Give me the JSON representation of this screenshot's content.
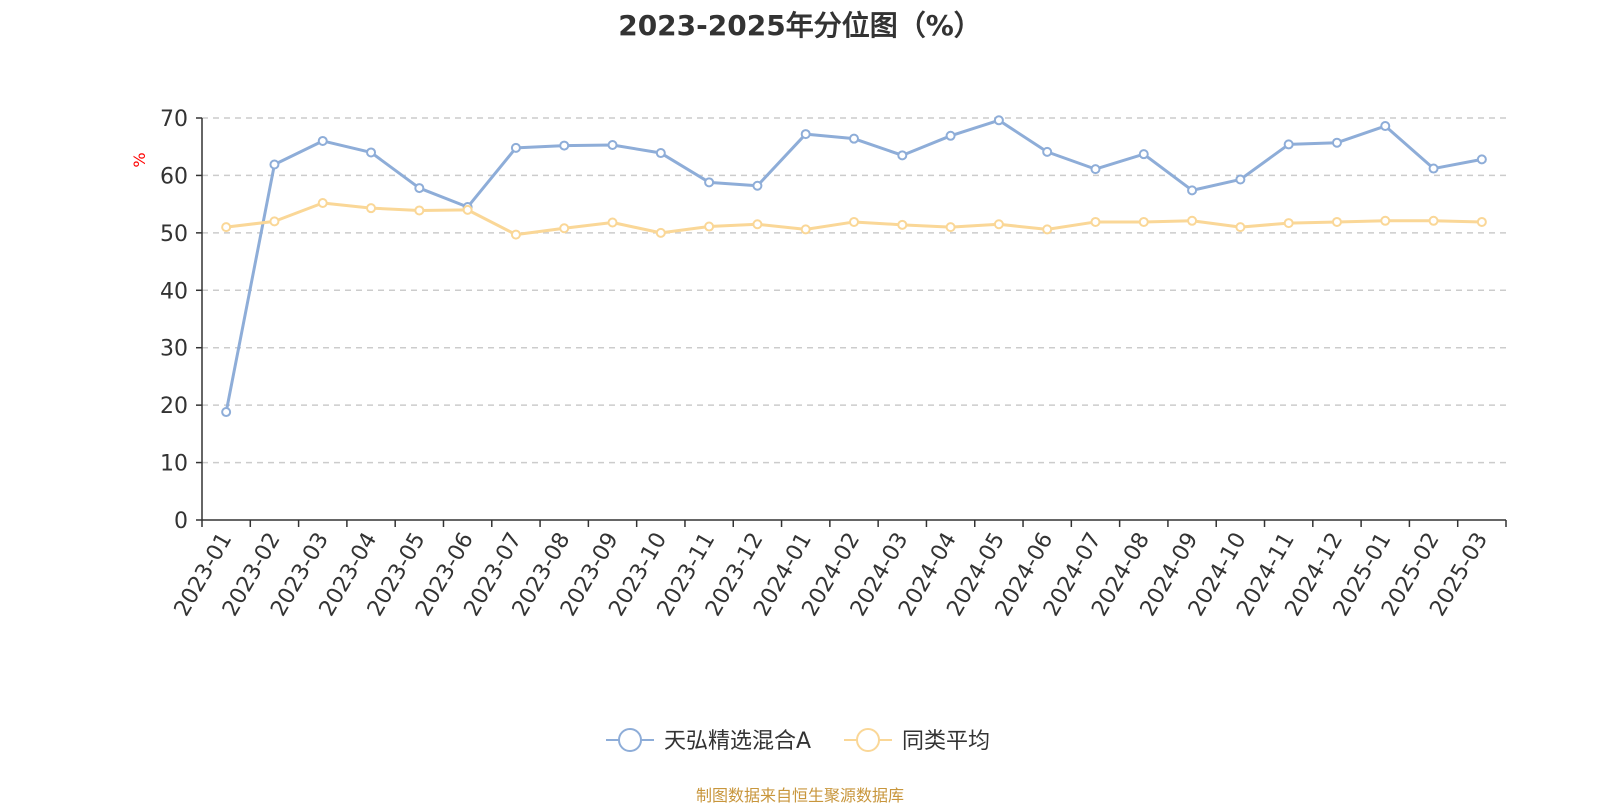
{
  "chart_data": {
    "type": "line",
    "title": "2023-2025年分位图（%）",
    "ylabel": "%",
    "xlabel": "",
    "ylim": [
      0,
      70
    ],
    "yticks": [
      0,
      10,
      20,
      30,
      40,
      50,
      60,
      70
    ],
    "grid": true,
    "legend_position": "bottom-center",
    "categories": [
      "2023-01",
      "2023-02",
      "2023-03",
      "2023-04",
      "2023-05",
      "2023-06",
      "2023-07",
      "2023-08",
      "2023-09",
      "2023-10",
      "2023-11",
      "2023-12",
      "2024-01",
      "2024-02",
      "2024-03",
      "2024-04",
      "2024-05",
      "2024-06",
      "2024-07",
      "2024-08",
      "2024-09",
      "2024-10",
      "2024-11",
      "2024-12",
      "2025-01",
      "2025-02",
      "2025-03"
    ],
    "series": [
      {
        "name": "天弘精选混合A",
        "color": "#8eadd8",
        "values": [
          18.8,
          61.9,
          66.0,
          64.0,
          57.8,
          54.5,
          64.8,
          65.2,
          65.3,
          63.9,
          58.8,
          58.2,
          67.2,
          66.4,
          63.5,
          66.9,
          69.6,
          64.1,
          61.1,
          63.7,
          57.4,
          59.3,
          65.4,
          65.7,
          68.6,
          61.2,
          62.8
        ]
      },
      {
        "name": "同类平均",
        "color": "#fad797",
        "values": [
          51.0,
          52.0,
          55.2,
          54.3,
          53.9,
          54.0,
          49.7,
          50.8,
          51.8,
          50.0,
          51.1,
          51.5,
          50.6,
          51.9,
          51.4,
          51.0,
          51.5,
          50.6,
          51.9,
          51.9,
          52.1,
          51.0,
          51.7,
          51.9,
          52.1,
          52.1,
          51.9
        ]
      }
    ]
  },
  "source": "制图数据来自恒生聚源数据库"
}
